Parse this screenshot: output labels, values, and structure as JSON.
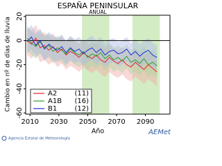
{
  "chart_data": {
    "type": "line",
    "title": "ESPAÑA PENINSULAR",
    "subtitle": "ANUAL",
    "y_label": "Cambio en nº de días de lluvia",
    "x_label": "Año",
    "source": "Agencia Estatal de Meteorología",
    "logo_text": "AEMet",
    "xlim": [
      2007,
      2107
    ],
    "xticks": [
      2010,
      2030,
      2050,
      2070,
      2090
    ],
    "ylim": [
      -61,
      21
    ],
    "yticks": [
      -60,
      -40,
      -20,
      0,
      20
    ],
    "periods": [
      [
        2046,
        2065
      ],
      [
        2081,
        2100
      ]
    ],
    "period_color": "#d4ecc4",
    "legend": "lower left",
    "x": [
      2008,
      2011,
      2014,
      2017,
      2020,
      2023,
      2026,
      2029,
      2032,
      2035,
      2038,
      2041,
      2044,
      2047,
      2050,
      2053,
      2056,
      2059,
      2062,
      2065,
      2068,
      2071,
      2074,
      2077,
      2080,
      2083,
      2086,
      2089,
      2092,
      2095,
      2098
    ],
    "series": [
      {
        "name": "A2",
        "count": "(11)",
        "color": "#e8202a",
        "band_color": "#f4a8a8",
        "values": [
          0,
          -3,
          2,
          -6,
          -4,
          -8,
          -5,
          -10,
          -7,
          -12,
          -9,
          -11,
          -14,
          -10,
          -13,
          -15,
          -12,
          -16,
          -18,
          -14,
          -17,
          -19,
          -16,
          -20,
          -22,
          -18,
          -21,
          -24,
          -20,
          -23,
          -26
        ],
        "lower": [
          -12,
          -15,
          -10,
          -18,
          -16,
          -20,
          -17,
          -22,
          -19,
          -24,
          -21,
          -23,
          -26,
          -22,
          -25,
          -27,
          -24,
          -28,
          -30,
          -26,
          -29,
          -31,
          -28,
          -32,
          -34,
          -30,
          -33,
          -36,
          -32,
          -35,
          -38
        ],
        "upper": [
          11,
          8,
          13,
          5,
          7,
          3,
          6,
          1,
          4,
          -1,
          2,
          0,
          -3,
          1,
          -2,
          -4,
          -1,
          -5,
          -7,
          -3,
          -6,
          -8,
          -5,
          -9,
          -11,
          -7,
          -10,
          -13,
          -9,
          -12,
          -15
        ]
      },
      {
        "name": "A1B",
        "count": "(16)",
        "color": "#2ca02c",
        "band_color": "#a8d8a0",
        "values": [
          2,
          -2,
          -5,
          -1,
          -6,
          -4,
          -9,
          -6,
          -8,
          -11,
          -7,
          -10,
          -12,
          -9,
          -14,
          -11,
          -13,
          -10,
          -15,
          -12,
          -16,
          -14,
          -17,
          -13,
          -18,
          -16,
          -19,
          -15,
          -20,
          -18,
          -21
        ],
        "lower": [
          -8,
          -12,
          -15,
          -11,
          -16,
          -14,
          -19,
          -16,
          -18,
          -21,
          -17,
          -20,
          -22,
          -19,
          -24,
          -21,
          -23,
          -20,
          -25,
          -22,
          -26,
          -24,
          -27,
          -23,
          -28,
          -26,
          -29,
          -25,
          -30,
          -28,
          -31
        ],
        "upper": [
          12,
          8,
          5,
          9,
          4,
          6,
          1,
          4,
          2,
          -1,
          3,
          0,
          -2,
          1,
          -4,
          -1,
          -3,
          0,
          -5,
          -2,
          -6,
          -4,
          -7,
          -3,
          -8,
          -6,
          -9,
          -5,
          -10,
          -8,
          -11
        ]
      },
      {
        "name": "B1",
        "count": "(12)",
        "color": "#2030d0",
        "band_color": "#b0b8e8",
        "values": [
          -1,
          3,
          -4,
          0,
          -7,
          -3,
          -6,
          -8,
          -5,
          -10,
          -6,
          -9,
          -7,
          -11,
          -8,
          -6,
          -10,
          -7,
          -12,
          -9,
          -8,
          -11,
          -10,
          -7,
          -12,
          -9,
          -13,
          -10,
          -8,
          -12,
          -14
        ],
        "lower": [
          -11,
          -7,
          -14,
          -10,
          -17,
          -13,
          -16,
          -18,
          -15,
          -20,
          -16,
          -19,
          -17,
          -21,
          -18,
          -16,
          -20,
          -17,
          -22,
          -19,
          -18,
          -21,
          -20,
          -17,
          -22,
          -19,
          -23,
          -20,
          -18,
          -22,
          -24
        ],
        "upper": [
          9,
          13,
          6,
          10,
          3,
          7,
          4,
          2,
          5,
          0,
          4,
          1,
          3,
          -1,
          2,
          4,
          0,
          3,
          -2,
          1,
          2,
          -1,
          0,
          3,
          -2,
          1,
          -3,
          0,
          2,
          -2,
          -4
        ]
      }
    ]
  }
}
